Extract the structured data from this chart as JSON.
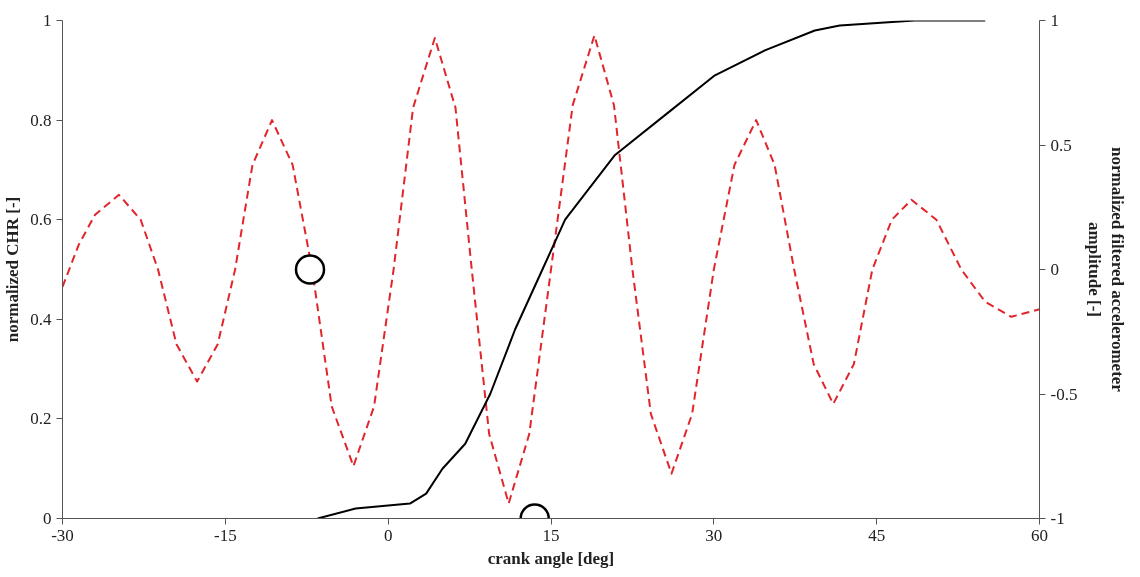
{
  "chart_data": {
    "type": "line",
    "xlabel": "crank angle [deg]",
    "ylabel": "normalized CHR [-]",
    "y2label": "normalized filtered accelerometer\namplitude [-]",
    "xlim": [
      -30,
      60
    ],
    "xticks": [
      -30,
      -15,
      0,
      15,
      30,
      45,
      60
    ],
    "ylim": [
      0,
      1
    ],
    "yticks": [
      0,
      0.2,
      0.4,
      0.6,
      0.8,
      1
    ],
    "y2lim": [
      -1,
      1
    ],
    "y2ticks": [
      -1,
      -0.5,
      0,
      0.5,
      1
    ],
    "grid": false,
    "series": [
      {
        "type": "line",
        "axis": "y2",
        "color": "#e0262b",
        "line_style": "dashed",
        "marker": "none",
        "x": [
          -30,
          -28.5,
          -27,
          -24.8,
          -22.8,
          -21.2,
          -19.5,
          -17.6,
          -15.7,
          -14.1,
          -12.5,
          -10.7,
          -8.8,
          -7.0,
          -5.2,
          -3.2,
          -1.3,
          0.5,
          2.3,
          4.3,
          6.2,
          7.7,
          9.3,
          11.1,
          13.0,
          15.0,
          17.0,
          19.0,
          20.8,
          22.5,
          24.2,
          26.1,
          28.0,
          30.0,
          31.9,
          33.9,
          35.6,
          37.4,
          39.2,
          41.0,
          42.9,
          44.6,
          46.4,
          48.2,
          50.5,
          52.8,
          55,
          57.4,
          60
        ],
        "values": [
          -0.07,
          0.1,
          0.22,
          0.3,
          0.2,
          0,
          -0.3,
          -0.45,
          -0.3,
          0,
          0.42,
          0.6,
          0.42,
          0,
          -0.55,
          -0.79,
          -0.55,
          0,
          0.65,
          0.93,
          0.65,
          0,
          -0.66,
          -0.94,
          -0.66,
          0,
          0.66,
          0.94,
          0.66,
          0,
          -0.58,
          -0.82,
          -0.58,
          0,
          0.42,
          0.6,
          0.42,
          0,
          -0.38,
          -0.54,
          -0.38,
          0,
          0.2,
          0.28,
          0.2,
          0,
          -0.13,
          -0.19,
          -0.16
        ]
      },
      {
        "axis": "y",
        "color": "#000000",
        "line_style": "solid",
        "marker": "none",
        "x": [
          -6.5,
          -3,
          2,
          3.5,
          5,
          7.1,
          9.4,
          11.7,
          14,
          16.3,
          20.9,
          25.5,
          30.1,
          34.7,
          39.3,
          41.6,
          48.5,
          55
        ],
        "values": [
          0,
          0.02,
          0.03,
          0.05,
          0.1,
          0.15,
          0.25,
          0.38,
          0.49,
          0.6,
          0.73,
          0.81,
          0.89,
          0.94,
          0.98,
          0.99,
          1,
          1
        ]
      },
      {
        "type": "scatter",
        "axis": "y2",
        "color": "#000000",
        "marker": "circle",
        "x": [
          -7.2,
          13.5
        ],
        "values": [
          0,
          -1
        ]
      }
    ]
  }
}
